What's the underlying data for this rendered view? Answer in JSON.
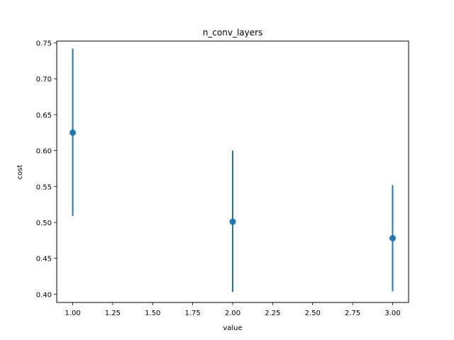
{
  "chart_data": {
    "type": "scatter",
    "title": "n_conv_layers",
    "xlabel": "value",
    "ylabel": "cost",
    "xlim": [
      0.9,
      3.1
    ],
    "ylim": [
      0.3885,
      0.7525
    ],
    "grid": false,
    "legend": "none",
    "xticks": [
      "1.00",
      "1.25",
      "1.50",
      "1.75",
      "2.00",
      "2.25",
      "2.50",
      "2.75",
      "3.00"
    ],
    "xtick_values": [
      1.0,
      1.25,
      1.5,
      1.75,
      2.0,
      2.25,
      2.5,
      2.75,
      3.0
    ],
    "yticks": [
      "0.40",
      "0.45",
      "0.50",
      "0.55",
      "0.60",
      "0.65",
      "0.70",
      "0.75"
    ],
    "ytick_values": [
      0.4,
      0.45,
      0.5,
      0.55,
      0.6,
      0.65,
      0.7,
      0.75
    ],
    "series": [
      {
        "color": "#1f77b4",
        "points": [
          {
            "x": 1,
            "y": 0.625,
            "ymin": 0.509,
            "ymax": 0.742
          },
          {
            "x": 2,
            "y": 0.501,
            "ymin": 0.403,
            "ymax": 0.6
          },
          {
            "x": 3,
            "y": 0.478,
            "ymin": 0.404,
            "ymax": 0.552
          }
        ]
      }
    ]
  }
}
